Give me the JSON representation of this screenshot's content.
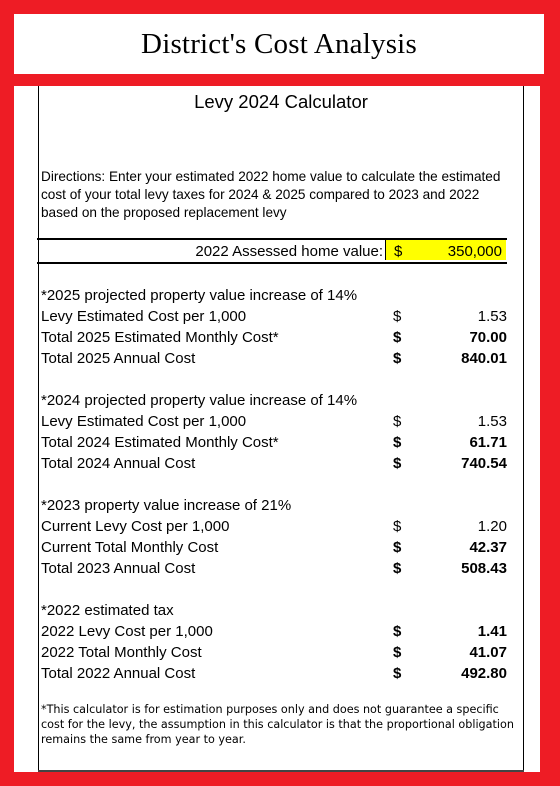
{
  "header": {
    "title": "District's Cost Analysis"
  },
  "calculator": {
    "title": "Levy 2024 Calculator",
    "directions": "Directions: Enter your estimated 2022 home value to calculate the estimated cost of your total levy taxes for 2024 & 2025 compared to 2023 and 2022 based on the proposed replacement levy",
    "home_value": {
      "label": "2022 Assessed home value:",
      "currency": "$",
      "value": "350,000"
    },
    "sections": [
      {
        "heading": "*2025 projected property value increase of 14%",
        "rows": [
          {
            "label": "Levy Estimated Cost per 1,000",
            "currency": "$",
            "amount": "1.53"
          },
          {
            "label": "Total 2025 Estimated Monthly Cost*",
            "currency": "$",
            "amount": "70.00"
          },
          {
            "label": "Total 2025 Annual Cost",
            "currency": "$",
            "amount": "840.01"
          }
        ]
      },
      {
        "heading": "*2024 projected property value increase of 14%",
        "rows": [
          {
            "label": "Levy Estimated Cost per 1,000",
            "currency": "$",
            "amount": "1.53"
          },
          {
            "label": "Total 2024 Estimated Monthly Cost*",
            "currency": "$",
            "amount": "61.71"
          },
          {
            "label": "Total 2024 Annual Cost",
            "currency": "$",
            "amount": "740.54"
          }
        ]
      },
      {
        "heading": "*2023 property value increase of 21%",
        "rows": [
          {
            "label": "Current Levy Cost per 1,000",
            "currency": "$",
            "amount": "1.20"
          },
          {
            "label": "Current Total Monthly Cost",
            "currency": "$",
            "amount": "42.37"
          },
          {
            "label": "Total 2023 Annual Cost",
            "currency": "$",
            "amount": "508.43"
          }
        ]
      },
      {
        "heading": "*2022 estimated tax",
        "rows": [
          {
            "label": "2022 Levy Cost per 1,000",
            "currency": "$",
            "amount": "1.41"
          },
          {
            "label": "2022 Total Monthly Cost",
            "currency": "$",
            "amount": "41.07"
          },
          {
            "label": "Total 2022 Annual Cost",
            "currency": "$",
            "amount": "492.80"
          }
        ]
      }
    ],
    "footnote": "*This calculator is for estimation purposes only and does not guarantee a specific cost for the levy, the assumption in this calculator is that the proportional obligation remains the same from year to year."
  },
  "colors": {
    "frame": "#ee1c25",
    "input_cell": "#ffff00"
  }
}
